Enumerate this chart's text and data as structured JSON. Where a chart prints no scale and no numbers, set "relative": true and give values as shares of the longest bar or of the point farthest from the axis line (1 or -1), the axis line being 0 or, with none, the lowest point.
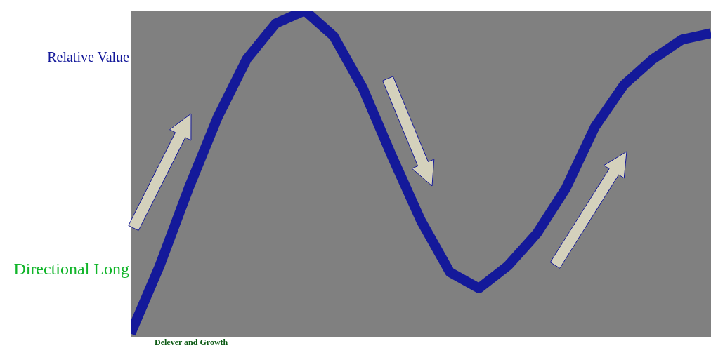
{
  "chart_data": {
    "type": "line",
    "relative": true,
    "categories": [
      null,
      null,
      null,
      null,
      null,
      null,
      null,
      null,
      null,
      null,
      null,
      null,
      null,
      null,
      null,
      null,
      null,
      null,
      null,
      null,
      null
    ],
    "series": [
      {
        "color": "#14199a",
        "values": [
          0,
          0.21,
          0.45,
          0.67,
          0.85,
          0.96,
          1,
          0.92,
          0.76,
          0.55,
          0.35,
          0.19,
          0.14,
          0.21,
          0.31,
          0.45,
          0.64,
          0.77,
          0.85,
          0.91,
          0.93
        ]
      }
    ],
    "annotations": [
      "Relative Value",
      "Directional Long",
      "Delever and Growth"
    ]
  }
}
